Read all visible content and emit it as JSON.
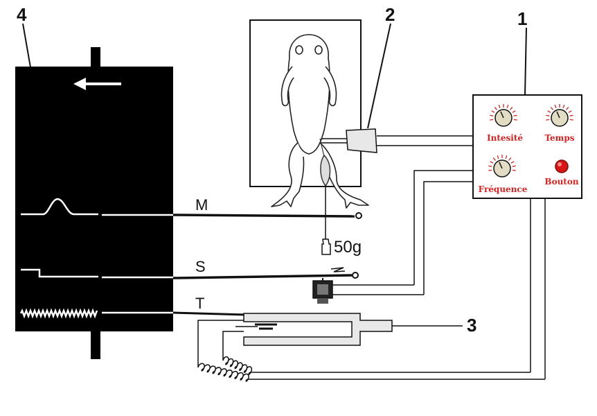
{
  "numbers": {
    "drum": "4",
    "electrode": "2",
    "stimulator": "1",
    "chronograph": "3"
  },
  "traces": {
    "muscle": "M",
    "signal": "S",
    "time": "T"
  },
  "weight": "50g",
  "stimulator_panel": {
    "knob_intensity": "Intesité",
    "knob_time": "Temps",
    "knob_frequency": "Fréquence",
    "button": "Bouton"
  },
  "colors": {
    "ink": "#111111",
    "drum": "#000000",
    "label_red": "#e0201e",
    "led_red": "#d91515",
    "knob_fill": "#e2dcc4",
    "panel_bg": "#ffffff"
  }
}
